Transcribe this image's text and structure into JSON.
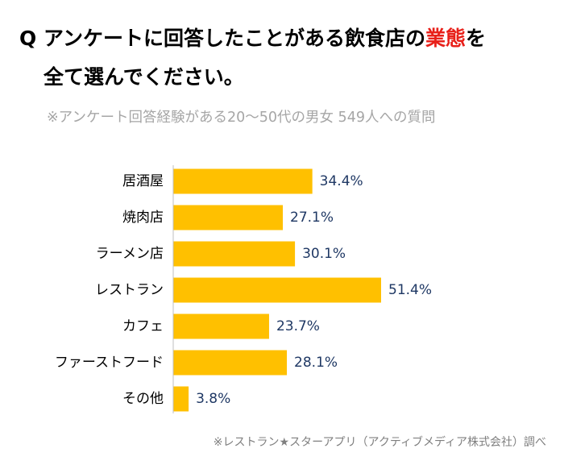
{
  "question": {
    "marker": "Q",
    "line1_before": "アンケートに回答したことがある飲食店の",
    "line1_emphasis": "業態",
    "line1_after": "を",
    "line2": "全て選んでください。"
  },
  "subtitle": "※アンケート回答経験がある20～50代の男女 549人への質問",
  "source": "※レストラン★スターアプリ（アクティブメディア株式会社）調べ",
  "colors": {
    "bar": "#ffc000",
    "value_label": "#1f3864",
    "category_label": "#000000",
    "axis": "#bfbfbf",
    "emphasis": "#e8201a"
  },
  "chart_data": {
    "type": "bar",
    "orientation": "horizontal",
    "categories": [
      "居酒屋",
      "焼肉店",
      "ラーメン店",
      "レストラン",
      "カフェ",
      "ファーストフード",
      "その他"
    ],
    "values": [
      34.4,
      27.1,
      30.1,
      51.4,
      23.7,
      28.1,
      3.8
    ],
    "value_labels": [
      "34.4%",
      "27.1%",
      "30.1%",
      "51.4%",
      "23.7%",
      "28.1%",
      "3.8%"
    ],
    "unit": "%",
    "xlim": [
      0,
      51.4
    ],
    "grid": false,
    "legend": "none"
  }
}
